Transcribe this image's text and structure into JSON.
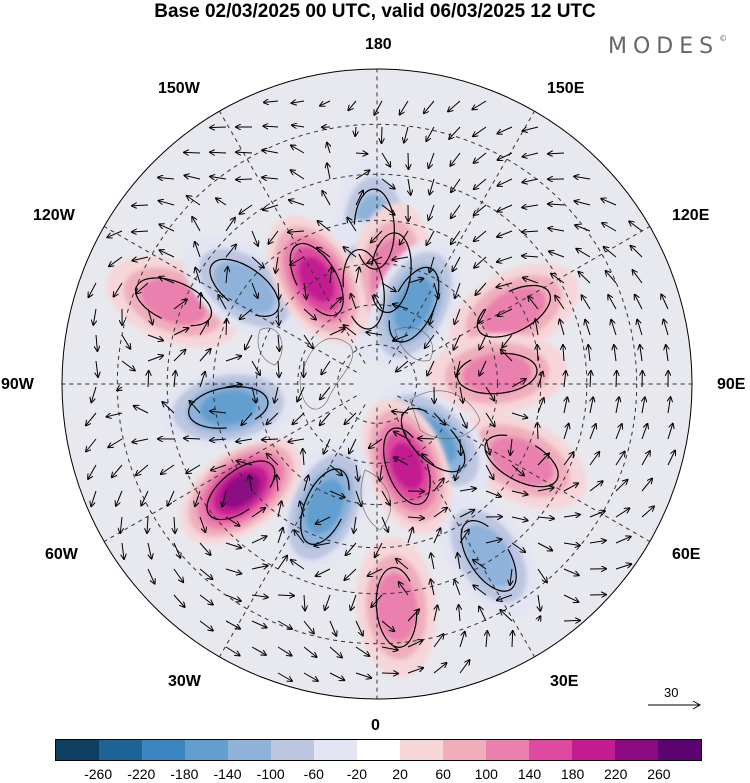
{
  "title": "Base 02/03/2025 00 UTC, valid 06/03/2025 12 UTC",
  "brand": "MODES",
  "brand_mark": "©",
  "longitude_labels": {
    "top": "180",
    "top_left": "150W",
    "top_right": "150E",
    "upper_left": "120W",
    "upper_right": "120E",
    "left": "90W",
    "right": "90E",
    "lower_left": "60W",
    "lower_right": "60E",
    "bottom_left": "30W",
    "bottom_right": "30E",
    "bottom": "0"
  },
  "vector_reference": "30",
  "colorbar": {
    "ticks": [
      "-260",
      "-220",
      "-180",
      "-140",
      "-100",
      "-60",
      "-20",
      "20",
      "60",
      "100",
      "140",
      "180",
      "220",
      "260"
    ],
    "colors": [
      "#0d3f63",
      "#1d6396",
      "#3a86c0",
      "#629fcf",
      "#8eb2da",
      "#bcc6e1",
      "#e3e5f2",
      "#ffffff",
      "#f6d6d8",
      "#f0aebc",
      "#ea80ad",
      "#de4aa0",
      "#c31c91",
      "#8d0b82",
      "#5a0371"
    ]
  },
  "anomaly_centers": [
    {
      "lon": -179,
      "lat": 52,
      "value": -140
    },
    {
      "lon": -172,
      "lat": 66,
      "value": -100
    },
    {
      "lon": 173,
      "lat": 62,
      "value": 150
    },
    {
      "lon": 155,
      "lat": 68,
      "value": -180
    },
    {
      "lon": 118,
      "lat": 52,
      "value": 130
    },
    {
      "lon": 95,
      "lat": 60,
      "value": 150
    },
    {
      "lon": 62,
      "lat": 50,
      "value": 120
    },
    {
      "lon": 45,
      "lat": 70,
      "value": -180
    },
    {
      "lon": 33,
      "lat": 41,
      "value": -140
    },
    {
      "lon": 20,
      "lat": 68,
      "value": 220
    },
    {
      "lon": 5,
      "lat": 37,
      "value": 120
    },
    {
      "lon": -23,
      "lat": 57,
      "value": -160
    },
    {
      "lon": -52,
      "lat": 48,
      "value": 260
    },
    {
      "lon": -81,
      "lat": 53,
      "value": -180
    },
    {
      "lon": -112,
      "lat": 38,
      "value": 120
    },
    {
      "lon": -126,
      "lat": 50,
      "value": -140
    },
    {
      "lon": -150,
      "lat": 60,
      "value": 200
    }
  ]
}
